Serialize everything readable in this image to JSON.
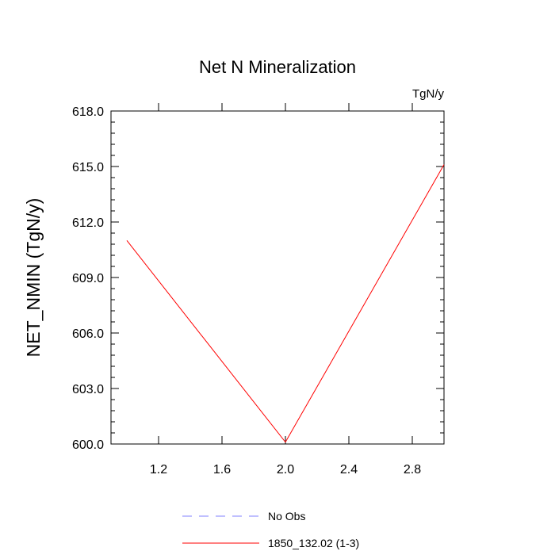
{
  "chart_data": {
    "type": "line",
    "title": "Net N Mineralization",
    "units_label": "TgN/y",
    "ylabel": "NET_NMIN  (TgN/y)",
    "xlabel": "",
    "xlim": [
      0.9,
      3.0
    ],
    "ylim": [
      600.0,
      618.0
    ],
    "x_ticks": [
      1.2,
      1.6,
      2.0,
      2.4,
      2.8
    ],
    "x_tick_labels": [
      "1.2",
      "1.6",
      "2.0",
      "2.4",
      "2.8"
    ],
    "y_ticks": [
      600.0,
      603.0,
      606.0,
      609.0,
      612.0,
      615.0,
      618.0
    ],
    "y_tick_labels": [
      "600.0",
      "603.0",
      "606.0",
      "609.0",
      "612.0",
      "615.0",
      "618.0"
    ],
    "grid": false,
    "legend_position": "bottom",
    "series": [
      {
        "name": "No Obs",
        "color": "#8080ff",
        "dash": "dashed",
        "x": [],
        "y": []
      },
      {
        "name": "1850_132.02 (1-3)",
        "color": "#ff0000",
        "dash": "solid",
        "x": [
          1.0,
          2.0,
          3.0
        ],
        "y": [
          611.0,
          600.1,
          615.1
        ]
      }
    ]
  }
}
